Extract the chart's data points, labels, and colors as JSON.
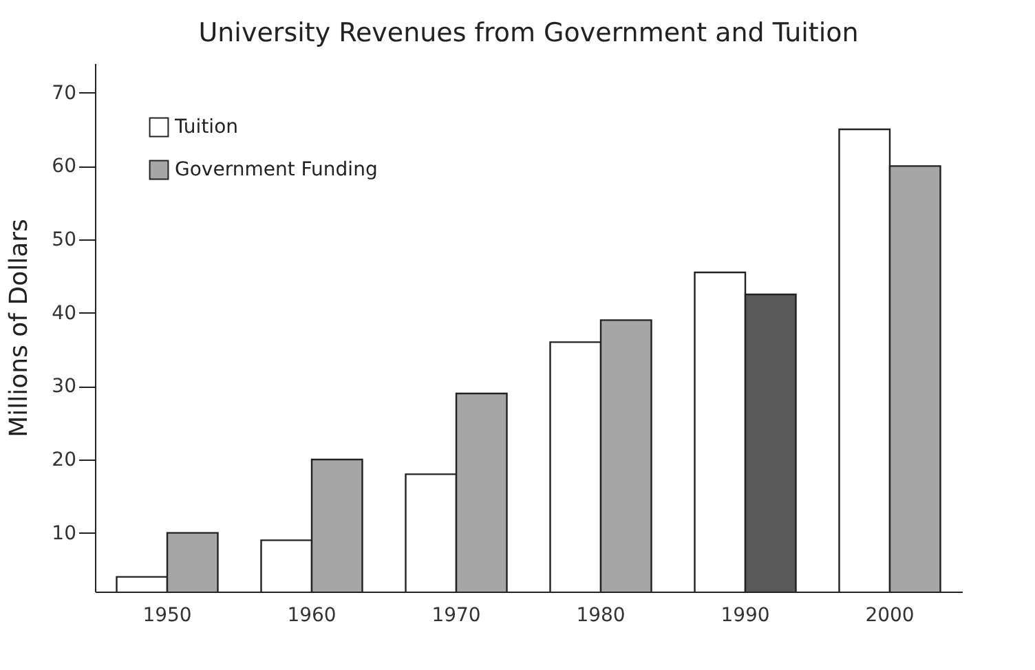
{
  "chart_data": {
    "type": "bar",
    "title": "University Revenues from Government and Tuition",
    "ylabel": "Millions of Dollars",
    "categories": [
      "1950",
      "1960",
      "1970",
      "1980",
      "1990",
      "2000"
    ],
    "series": [
      {
        "name": "Tuition",
        "color": "#ffffff",
        "values": [
          4,
          9,
          18,
          36,
          45.5,
          65
        ]
      },
      {
        "name": "Government Funding",
        "color": "#a6a6a6",
        "colors": [
          "#a6a6a6",
          "#a6a6a6",
          "#a6a6a6",
          "#a6a6a6",
          "#595959",
          "#a6a6a6"
        ],
        "values": [
          10,
          20,
          29,
          39,
          42.5,
          60
        ]
      }
    ],
    "ylim": [
      2,
      74
    ],
    "yticks": [
      10,
      20,
      30,
      40,
      50,
      60,
      70
    ],
    "grid": false,
    "legend": "top left"
  }
}
